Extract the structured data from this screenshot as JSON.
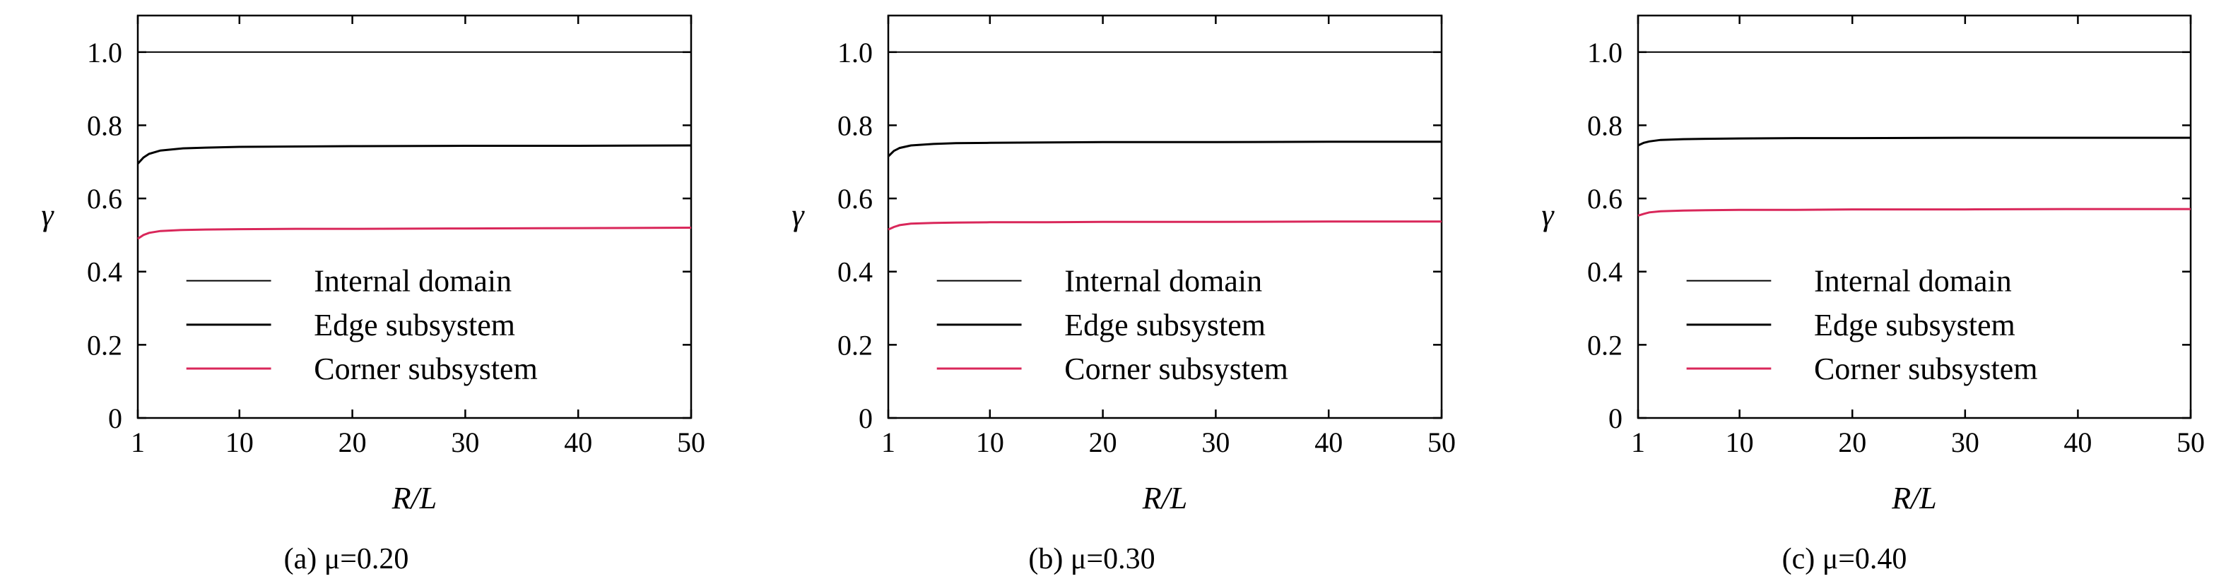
{
  "chart_data": [
    {
      "type": "line",
      "caption": "(a) μ=0.20",
      "xlabel": "R/L",
      "ylabel": "γ",
      "xlim": [
        1,
        50
      ],
      "ylim": [
        0,
        1.1
      ],
      "xticks": [
        1,
        10,
        20,
        30,
        40,
        50
      ],
      "yticks": [
        0,
        0.2,
        0.4,
        0.6,
        0.8,
        1.0
      ],
      "legend_position": "lower-right",
      "series": [
        {
          "name": "Internal domain",
          "color": "#000000",
          "x": [
            1,
            5,
            10,
            20,
            30,
            40,
            50
          ],
          "y": [
            1.0,
            1.0,
            1.0,
            1.0,
            1.0,
            1.0,
            1.0
          ]
        },
        {
          "name": "Edge subsystem",
          "color": "#000000",
          "x": [
            1,
            1.5,
            2,
            3,
            5,
            7,
            10,
            15,
            20,
            30,
            40,
            50
          ],
          "y": [
            0.695,
            0.712,
            0.722,
            0.731,
            0.737,
            0.739,
            0.741,
            0.742,
            0.743,
            0.744,
            0.744,
            0.745
          ]
        },
        {
          "name": "Corner subsystem",
          "color": "#d9275a",
          "x": [
            1,
            1.5,
            2,
            3,
            5,
            7,
            10,
            15,
            20,
            30,
            40,
            50
          ],
          "y": [
            0.49,
            0.5,
            0.506,
            0.511,
            0.514,
            0.515,
            0.516,
            0.517,
            0.517,
            0.518,
            0.519,
            0.52
          ]
        }
      ]
    },
    {
      "type": "line",
      "caption": "(b) μ=0.30",
      "xlabel": "R/L",
      "ylabel": "γ",
      "xlim": [
        1,
        50
      ],
      "ylim": [
        0,
        1.1
      ],
      "xticks": [
        1,
        10,
        20,
        30,
        40,
        50
      ],
      "yticks": [
        0,
        0.2,
        0.4,
        0.6,
        0.8,
        1.0
      ],
      "legend_position": "lower-right",
      "series": [
        {
          "name": "Internal domain",
          "color": "#000000",
          "x": [
            1,
            5,
            10,
            20,
            30,
            40,
            50
          ],
          "y": [
            1.0,
            1.0,
            1.0,
            1.0,
            1.0,
            1.0,
            1.0
          ]
        },
        {
          "name": "Edge subsystem",
          "color": "#000000",
          "x": [
            1,
            1.5,
            2,
            3,
            5,
            7,
            10,
            15,
            20,
            30,
            40,
            50
          ],
          "y": [
            0.715,
            0.73,
            0.738,
            0.745,
            0.749,
            0.751,
            0.752,
            0.753,
            0.754,
            0.754,
            0.755,
            0.755
          ]
        },
        {
          "name": "Corner subsystem",
          "color": "#d9275a",
          "x": [
            1,
            1.5,
            2,
            3,
            5,
            7,
            10,
            15,
            20,
            30,
            40,
            50
          ],
          "y": [
            0.515,
            0.522,
            0.527,
            0.531,
            0.533,
            0.534,
            0.535,
            0.535,
            0.536,
            0.536,
            0.537,
            0.537
          ]
        }
      ]
    },
    {
      "type": "line",
      "caption": "(c) μ=0.40",
      "xlabel": "R/L",
      "ylabel": "γ",
      "xlim": [
        1,
        50
      ],
      "ylim": [
        0,
        1.1
      ],
      "xticks": [
        1,
        10,
        20,
        30,
        40,
        50
      ],
      "yticks": [
        0,
        0.2,
        0.4,
        0.6,
        0.8,
        1.0
      ],
      "legend_position": "lower-right",
      "series": [
        {
          "name": "Internal domain",
          "color": "#000000",
          "x": [
            1,
            5,
            10,
            20,
            30,
            40,
            50
          ],
          "y": [
            1.0,
            1.0,
            1.0,
            1.0,
            1.0,
            1.0,
            1.0
          ]
        },
        {
          "name": "Edge subsystem",
          "color": "#000000",
          "x": [
            1,
            1.5,
            2,
            3,
            5,
            7,
            10,
            15,
            20,
            30,
            40,
            50
          ],
          "y": [
            0.745,
            0.752,
            0.756,
            0.76,
            0.762,
            0.763,
            0.764,
            0.765,
            0.765,
            0.766,
            0.766,
            0.766
          ]
        },
        {
          "name": "Corner subsystem",
          "color": "#d9275a",
          "x": [
            1,
            1.5,
            2,
            3,
            5,
            7,
            10,
            15,
            20,
            30,
            40,
            50
          ],
          "y": [
            0.553,
            0.558,
            0.562,
            0.565,
            0.567,
            0.568,
            0.569,
            0.569,
            0.57,
            0.57,
            0.571,
            0.571
          ]
        }
      ]
    }
  ]
}
